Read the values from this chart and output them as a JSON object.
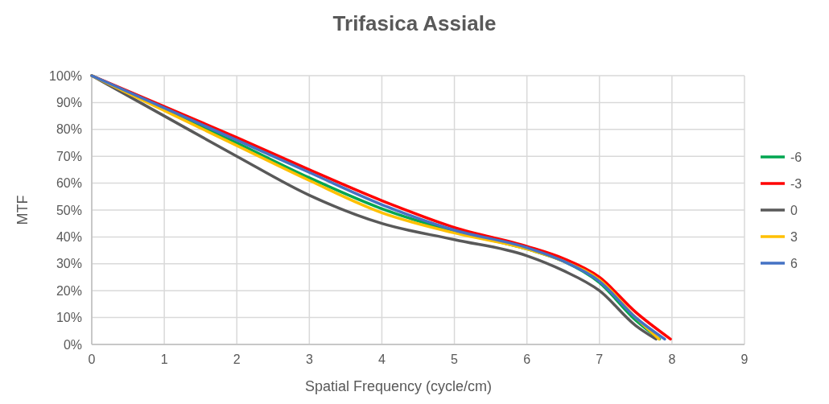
{
  "chart_data": {
    "type": "line",
    "title": "Trifasica Assiale",
    "xlabel": "Spatial Frequency (cycle/cm)",
    "ylabel": "MTF",
    "xlim": [
      0,
      9
    ],
    "xticks": [
      0,
      1,
      2,
      3,
      4,
      5,
      6,
      7,
      8,
      9
    ],
    "ylim": [
      0,
      1
    ],
    "yticks": [
      {
        "value": 0,
        "label": "0%"
      },
      {
        "value": 0.1,
        "label": "10%"
      },
      {
        "value": 0.2,
        "label": "20%"
      },
      {
        "value": 0.3,
        "label": "30%"
      },
      {
        "value": 0.4,
        "label": "40%"
      },
      {
        "value": 0.5,
        "label": "50%"
      },
      {
        "value": 0.6,
        "label": "60%"
      },
      {
        "value": 0.7,
        "label": "70%"
      },
      {
        "value": 0.8,
        "label": "80%"
      },
      {
        "value": 0.9,
        "label": "90%"
      },
      {
        "value": 1,
        "label": "100%"
      }
    ],
    "grid": true,
    "legend": "right",
    "line_style": "solid",
    "marker": "none",
    "series": [
      {
        "name": "-6",
        "color": "#00a650",
        "x": [
          0,
          1,
          2,
          3,
          4,
          5,
          6,
          6.5,
          7,
          7.5,
          7.83
        ],
        "values": [
          1,
          0.875,
          0.75,
          0.62,
          0.505,
          0.42,
          0.355,
          0.31,
          0.23,
          0.09,
          0.02
        ]
      },
      {
        "name": "-3",
        "color": "#ff0000",
        "x": [
          0,
          1,
          2,
          3,
          4,
          5,
          6,
          6.5,
          7,
          7.5,
          7.98
        ],
        "values": [
          1,
          0.885,
          0.77,
          0.65,
          0.535,
          0.435,
          0.365,
          0.32,
          0.25,
          0.12,
          0.02
        ]
      },
      {
        "name": "0",
        "color": "#595959",
        "x": [
          0,
          1,
          2,
          3,
          4,
          5,
          6,
          6.5,
          7,
          7.5,
          7.78
        ],
        "values": [
          1,
          0.85,
          0.7,
          0.555,
          0.45,
          0.39,
          0.33,
          0.275,
          0.2,
          0.07,
          0.02
        ]
      },
      {
        "name": "3",
        "color": "#ffc000",
        "x": [
          0,
          1,
          2,
          3,
          4,
          5,
          6,
          6.5,
          7,
          7.5,
          7.82
        ],
        "values": [
          1,
          0.87,
          0.74,
          0.61,
          0.49,
          0.415,
          0.355,
          0.31,
          0.24,
          0.1,
          0.02
        ]
      },
      {
        "name": "6",
        "color": "#4472c4",
        "x": [
          0,
          1,
          2,
          3,
          4,
          5,
          6,
          6.5,
          7,
          7.5,
          7.9
        ],
        "values": [
          1,
          0.88,
          0.76,
          0.64,
          0.52,
          0.425,
          0.36,
          0.31,
          0.235,
          0.1,
          0.02
        ]
      }
    ]
  }
}
